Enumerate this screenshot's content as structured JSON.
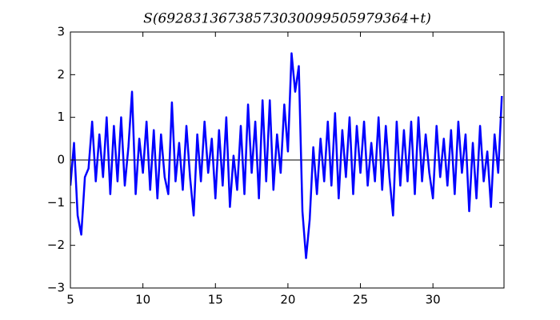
{
  "chart_data": {
    "type": "line",
    "title": "S(69283136738573030099505979364+t)",
    "color": "#0000ff",
    "hline": 0,
    "xlim": [
      5,
      34.9
    ],
    "ylim": [
      -3,
      3
    ],
    "xticks": [
      5,
      10,
      15,
      20,
      25,
      30
    ],
    "yticks": [
      {
        "value": -3,
        "label": "−3"
      },
      {
        "value": -2,
        "label": "−2"
      },
      {
        "value": -1,
        "label": "−1"
      },
      0,
      1,
      2,
      3
    ],
    "x": [
      5.0,
      5.25,
      5.5,
      5.75,
      6.0,
      6.25,
      6.5,
      6.75,
      7.0,
      7.25,
      7.5,
      7.75,
      8.0,
      8.25,
      8.5,
      8.75,
      9.0,
      9.25,
      9.5,
      9.75,
      10.0,
      10.25,
      10.5,
      10.75,
      11.0,
      11.25,
      11.5,
      11.75,
      12.0,
      12.25,
      12.5,
      12.75,
      13.0,
      13.25,
      13.5,
      13.75,
      14.0,
      14.25,
      14.5,
      14.75,
      15.0,
      15.25,
      15.5,
      15.75,
      16.0,
      16.25,
      16.5,
      16.75,
      17.0,
      17.25,
      17.5,
      17.75,
      18.0,
      18.25,
      18.5,
      18.75,
      19.0,
      19.25,
      19.5,
      19.75,
      20.0,
      20.25,
      20.5,
      20.75,
      21.0,
      21.25,
      21.5,
      21.75,
      22.0,
      22.25,
      22.5,
      22.75,
      23.0,
      23.25,
      23.5,
      23.75,
      24.0,
      24.25,
      24.5,
      24.75,
      25.0,
      25.25,
      25.5,
      25.75,
      26.0,
      26.25,
      26.5,
      26.75,
      27.0,
      27.25,
      27.5,
      27.75,
      28.0,
      28.25,
      28.5,
      28.75,
      29.0,
      29.25,
      29.5,
      29.75,
      30.0,
      30.25,
      30.5,
      30.75,
      31.0,
      31.25,
      31.5,
      31.75,
      32.0,
      32.25,
      32.5,
      32.75,
      33.0,
      33.25,
      33.5,
      33.75,
      34.0,
      34.25,
      34.5,
      34.75
    ],
    "values": [
      -0.6,
      0.4,
      -1.3,
      -1.75,
      -0.4,
      -0.2,
      0.9,
      -0.5,
      0.6,
      -0.4,
      1.0,
      -0.8,
      0.8,
      -0.5,
      1.0,
      -0.6,
      0.3,
      1.6,
      -0.8,
      0.5,
      -0.3,
      0.9,
      -0.7,
      0.7,
      -0.9,
      0.6,
      -0.4,
      -0.8,
      1.35,
      -0.5,
      0.4,
      -0.7,
      0.8,
      -0.4,
      -1.3,
      0.6,
      -0.5,
      0.9,
      -0.3,
      0.5,
      -0.9,
      0.7,
      -0.6,
      1.0,
      -1.1,
      0.1,
      -0.7,
      0.8,
      -0.8,
      1.3,
      -0.3,
      0.9,
      -0.9,
      1.4,
      -0.5,
      1.4,
      -0.7,
      0.6,
      -0.3,
      1.3,
      0.2,
      2.5,
      1.6,
      2.2,
      -1.2,
      -2.3,
      -1.4,
      0.3,
      -0.8,
      0.5,
      -0.5,
      0.9,
      -0.6,
      1.1,
      -0.9,
      0.7,
      -0.4,
      1.0,
      -0.8,
      0.8,
      -0.3,
      0.9,
      -0.6,
      0.4,
      -0.5,
      1.0,
      -0.7,
      0.8,
      -0.4,
      -1.3,
      0.9,
      -0.6,
      0.7,
      -0.5,
      0.9,
      -0.8,
      1.0,
      -0.5,
      0.6,
      -0.3,
      -0.9,
      0.8,
      -0.4,
      0.5,
      -0.6,
      0.7,
      -0.8,
      0.9,
      -0.3,
      0.6,
      -1.2,
      0.4,
      -0.9,
      0.8,
      -0.5,
      0.2,
      -1.1,
      0.6,
      -0.3,
      1.5
    ]
  }
}
